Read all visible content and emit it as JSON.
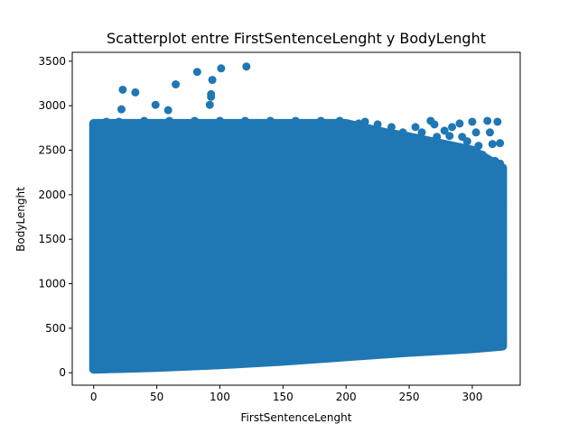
{
  "chart_data": {
    "type": "scatter",
    "title": "Scatterplot entre FirstSentenceLenght y BodyLenght",
    "xlabel": "FirstSentenceLenght",
    "ylabel": "BodyLenght",
    "xlim": [
      -17,
      338
    ],
    "ylim": [
      -140,
      3600
    ],
    "xticks": [
      0,
      50,
      100,
      150,
      200,
      250,
      300
    ],
    "yticks": [
      0,
      500,
      1000,
      1500,
      2000,
      2500,
      3000,
      3500
    ],
    "grid": false,
    "legend": "none",
    "color": "#1f77b4",
    "dense_region": {
      "x_range": [
        0,
        324
      ],
      "lower_boundary": [
        [
          0,
          40
        ],
        [
          50,
          60
        ],
        [
          100,
          90
        ],
        [
          150,
          130
        ],
        [
          200,
          180
        ],
        [
          250,
          230
        ],
        [
          300,
          270
        ],
        [
          324,
          300
        ]
      ],
      "upper_boundary": [
        [
          0,
          2800
        ],
        [
          200,
          2800
        ],
        [
          230,
          2700
        ],
        [
          250,
          2650
        ],
        [
          300,
          2500
        ],
        [
          324,
          2300
        ]
      ]
    },
    "points": [
      {
        "x": 0,
        "y": 2650
      },
      {
        "x": 0,
        "y": 2500
      },
      {
        "x": 0,
        "y": 2300
      },
      {
        "x": 0,
        "y": 2100
      },
      {
        "x": 5,
        "y": 2800
      },
      {
        "x": 10,
        "y": 2820
      },
      {
        "x": 20,
        "y": 2820
      },
      {
        "x": 40,
        "y": 2830
      },
      {
        "x": 60,
        "y": 2830
      },
      {
        "x": 80,
        "y": 2830
      },
      {
        "x": 100,
        "y": 2830
      },
      {
        "x": 120,
        "y": 2830
      },
      {
        "x": 140,
        "y": 2830
      },
      {
        "x": 160,
        "y": 2830
      },
      {
        "x": 180,
        "y": 2830
      },
      {
        "x": 195,
        "y": 2830
      },
      {
        "x": 22,
        "y": 2960
      },
      {
        "x": 23,
        "y": 3180
      },
      {
        "x": 33,
        "y": 3150
      },
      {
        "x": 49,
        "y": 3010
      },
      {
        "x": 59,
        "y": 2950
      },
      {
        "x": 65,
        "y": 3240
      },
      {
        "x": 82,
        "y": 3380
      },
      {
        "x": 92,
        "y": 3010
      },
      {
        "x": 93,
        "y": 3100
      },
      {
        "x": 93,
        "y": 3130
      },
      {
        "x": 94,
        "y": 3290
      },
      {
        "x": 101,
        "y": 3420
      },
      {
        "x": 121,
        "y": 3440
      },
      {
        "x": 210,
        "y": 2800
      },
      {
        "x": 215,
        "y": 2820
      },
      {
        "x": 225,
        "y": 2790
      },
      {
        "x": 236,
        "y": 2760
      },
      {
        "x": 240,
        "y": 2650
      },
      {
        "x": 245,
        "y": 2700
      },
      {
        "x": 250,
        "y": 2650
      },
      {
        "x": 252,
        "y": 2590
      },
      {
        "x": 255,
        "y": 2760
      },
      {
        "x": 260,
        "y": 2700
      },
      {
        "x": 263,
        "y": 2600
      },
      {
        "x": 267,
        "y": 2830
      },
      {
        "x": 270,
        "y": 2790
      },
      {
        "x": 272,
        "y": 2650
      },
      {
        "x": 275,
        "y": 2550
      },
      {
        "x": 278,
        "y": 2720
      },
      {
        "x": 282,
        "y": 2660
      },
      {
        "x": 284,
        "y": 2760
      },
      {
        "x": 288,
        "y": 2500
      },
      {
        "x": 290,
        "y": 2800
      },
      {
        "x": 292,
        "y": 2650
      },
      {
        "x": 296,
        "y": 2600
      },
      {
        "x": 300,
        "y": 2820
      },
      {
        "x": 303,
        "y": 2700
      },
      {
        "x": 305,
        "y": 2550
      },
      {
        "x": 308,
        "y": 2450
      },
      {
        "x": 312,
        "y": 2830
      },
      {
        "x": 314,
        "y": 2700
      },
      {
        "x": 316,
        "y": 2570
      },
      {
        "x": 318,
        "y": 2380
      },
      {
        "x": 320,
        "y": 2820
      },
      {
        "x": 322,
        "y": 2580
      },
      {
        "x": 322,
        "y": 2350
      },
      {
        "x": 322,
        "y": 2150
      },
      {
        "x": 324,
        "y": 2000
      },
      {
        "x": 324,
        "y": 1900
      },
      {
        "x": 324,
        "y": 1700
      },
      {
        "x": 324,
        "y": 1500
      },
      {
        "x": 324,
        "y": 1300
      },
      {
        "x": 324,
        "y": 1100
      },
      {
        "x": 324,
        "y": 900
      },
      {
        "x": 324,
        "y": 700
      },
      {
        "x": 324,
        "y": 500
      },
      {
        "x": 324,
        "y": 350
      },
      {
        "x": 240,
        "y": 2400
      },
      {
        "x": 255,
        "y": 2300
      },
      {
        "x": 262,
        "y": 2450
      },
      {
        "x": 270,
        "y": 2200
      },
      {
        "x": 280,
        "y": 2350
      },
      {
        "x": 286,
        "y": 2100
      },
      {
        "x": 295,
        "y": 2250
      },
      {
        "x": 300,
        "y": 2050
      },
      {
        "x": 305,
        "y": 2300
      },
      {
        "x": 310,
        "y": 2150
      },
      {
        "x": 315,
        "y": 1950
      },
      {
        "x": 318,
        "y": 2200
      },
      {
        "x": 245,
        "y": 2000
      },
      {
        "x": 258,
        "y": 1900
      },
      {
        "x": 268,
        "y": 1850
      },
      {
        "x": 278,
        "y": 1950
      },
      {
        "x": 285,
        "y": 1800
      },
      {
        "x": 292,
        "y": 1750
      },
      {
        "x": 302,
        "y": 1850
      },
      {
        "x": 312,
        "y": 1800
      }
    ]
  }
}
